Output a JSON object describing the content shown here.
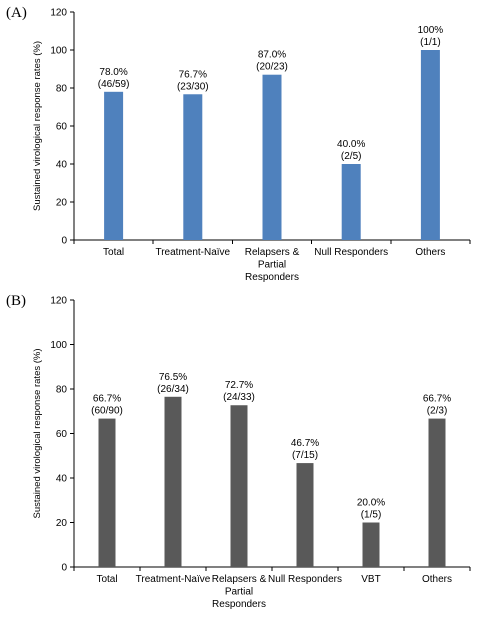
{
  "chart_data": [
    {
      "type": "bar",
      "panel_label": "(A)",
      "ylabel": "Sustained virological response rates (%)",
      "ylim": [
        0,
        120
      ],
      "yticks": [
        0,
        20,
        40,
        60,
        80,
        100,
        120
      ],
      "grid": false,
      "categories": [
        [
          "Total"
        ],
        [
          "Treatment-Naïve"
        ],
        [
          "Relapsers &",
          "Partial",
          "Responders"
        ],
        [
          "Null Responders"
        ],
        [
          "Others"
        ]
      ],
      "series": [
        {
          "values": [
            78.0,
            76.7,
            87.0,
            40.0,
            100
          ]
        }
      ],
      "data_labels": [
        [
          "78.0%",
          "(46/59)"
        ],
        [
          "76.7%",
          "(23/30)"
        ],
        [
          "87.0%",
          "(20/23)"
        ],
        [
          "40.0%",
          "(2/5)"
        ],
        [
          "100%",
          "(1/1)"
        ]
      ],
      "bar_color": "#4f81bd"
    },
    {
      "type": "bar",
      "panel_label": "(B)",
      "ylabel": "Sustained virological response rates (%)",
      "ylim": [
        0,
        120
      ],
      "yticks": [
        0,
        20,
        40,
        60,
        80,
        100,
        120
      ],
      "grid": false,
      "categories": [
        [
          "Total"
        ],
        [
          "Treatment-Naïve"
        ],
        [
          "Relapsers &",
          "Partial",
          "Responders"
        ],
        [
          "Null Responders"
        ],
        [
          "VBT"
        ],
        [
          "Others"
        ]
      ],
      "series": [
        {
          "values": [
            66.7,
            76.5,
            72.7,
            46.7,
            20.0,
            66.7
          ]
        }
      ],
      "data_labels": [
        [
          "66.7%",
          "(60/90)"
        ],
        [
          "76.5%",
          "(26/34)"
        ],
        [
          "72.7%",
          "(24/33)"
        ],
        [
          "46.7%",
          "(7/15)"
        ],
        [
          "20.0%",
          "(1/5)"
        ],
        [
          "66.7%",
          "(2/3)"
        ]
      ],
      "bar_color": "#595959"
    }
  ]
}
